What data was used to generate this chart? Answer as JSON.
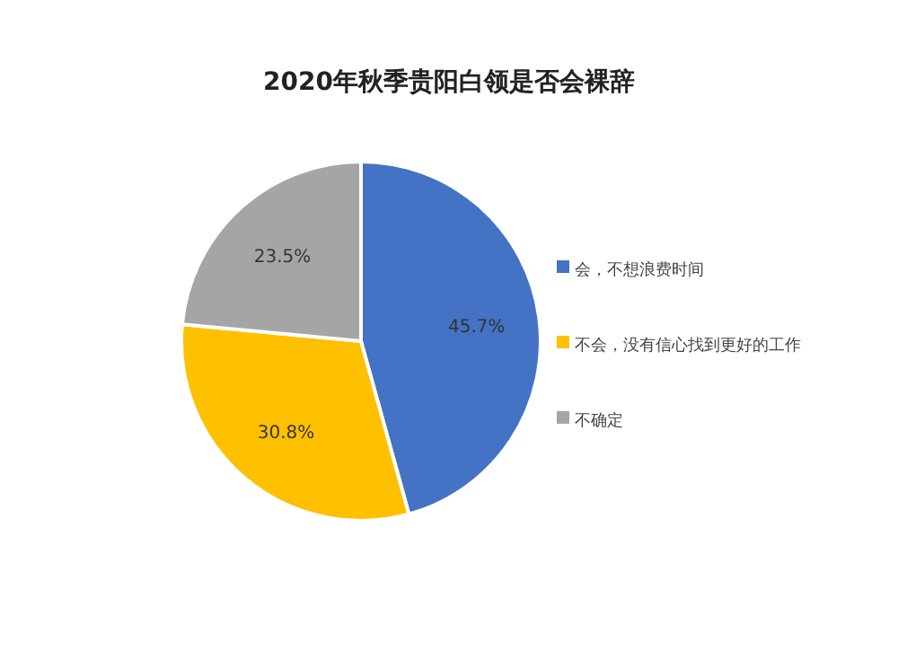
{
  "chart_data": {
    "type": "pie",
    "title": "2020年秋季贵阳白领是否会裸辞",
    "categories": [
      "会，不想浪费时间",
      "不会，没有信心找到更好的工作",
      "不确定"
    ],
    "values": [
      45.7,
      30.8,
      23.5
    ],
    "colors": [
      "#4472c4",
      "#ffc000",
      "#a5a5a5"
    ],
    "value_labels": [
      "45.7%",
      "30.8%",
      "23.5%"
    ],
    "legend": "right"
  }
}
